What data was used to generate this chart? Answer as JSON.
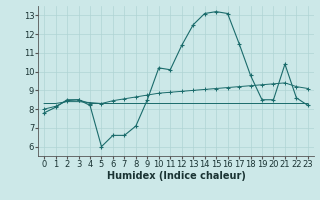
{
  "xlabel": "Humidex (Indice chaleur)",
  "bg_color": "#cce8e8",
  "grid_color": "#b0d4d4",
  "line_color": "#1a6b6b",
  "xlim": [
    -0.5,
    23.5
  ],
  "ylim": [
    5.5,
    13.5
  ],
  "yticks": [
    6,
    7,
    8,
    9,
    10,
    11,
    12,
    13
  ],
  "xticks": [
    0,
    1,
    2,
    3,
    4,
    5,
    6,
    7,
    8,
    9,
    10,
    11,
    12,
    13,
    14,
    15,
    16,
    17,
    18,
    19,
    20,
    21,
    22,
    23
  ],
  "series1_x": [
    0,
    1,
    2,
    3,
    4,
    5,
    6,
    7,
    8,
    9,
    10,
    11,
    12,
    13,
    14,
    15,
    16,
    17,
    18,
    19,
    20,
    21,
    22,
    23
  ],
  "series1_y": [
    7.8,
    8.1,
    8.5,
    8.5,
    8.2,
    6.0,
    6.6,
    6.6,
    7.1,
    8.5,
    10.2,
    10.1,
    11.4,
    12.5,
    13.1,
    13.2,
    13.1,
    11.5,
    9.8,
    8.5,
    8.5,
    10.4,
    8.6,
    8.2
  ],
  "series2_x": [
    0,
    1,
    2,
    3,
    4,
    5,
    6,
    7,
    8,
    9,
    10,
    11,
    12,
    13,
    14,
    15,
    16,
    17,
    18,
    19,
    20,
    21,
    22,
    23
  ],
  "series2_y": [
    8.3,
    8.3,
    8.4,
    8.4,
    8.35,
    8.3,
    8.3,
    8.3,
    8.3,
    8.3,
    8.3,
    8.3,
    8.3,
    8.3,
    8.3,
    8.3,
    8.3,
    8.3,
    8.3,
    8.3,
    8.3,
    8.3,
    8.3,
    8.3
  ],
  "series3_x": [
    0,
    1,
    2,
    3,
    4,
    5,
    6,
    7,
    8,
    9,
    10,
    11,
    12,
    13,
    14,
    15,
    16,
    17,
    18,
    19,
    20,
    21,
    22,
    23
  ],
  "series3_y": [
    8.0,
    8.15,
    8.45,
    8.5,
    8.3,
    8.3,
    8.45,
    8.55,
    8.65,
    8.75,
    8.85,
    8.9,
    8.95,
    9.0,
    9.05,
    9.1,
    9.15,
    9.2,
    9.25,
    9.3,
    9.35,
    9.4,
    9.2,
    9.1
  ],
  "tick_fontsize": 6,
  "xlabel_fontsize": 7
}
